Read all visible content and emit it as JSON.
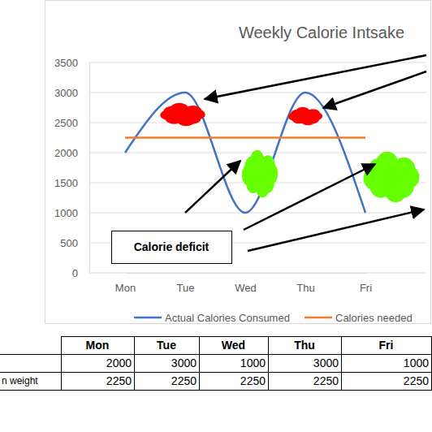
{
  "chart_data": {
    "type": "line",
    "title": "Weekly Calorie Intsake",
    "categories": [
      "Mon",
      "Tue",
      "Wed",
      "Thu",
      "Fri"
    ],
    "series": [
      {
        "name": "Actual Calories Consumed",
        "color": "#4472c4",
        "values": [
          2000,
          3000,
          1000,
          3000,
          1000
        ]
      },
      {
        "name": "Calories needed",
        "color": "#ed7d31",
        "values": [
          2250,
          2250,
          2250,
          2250,
          2250
        ]
      }
    ],
    "ylim": [
      0,
      3500
    ],
    "yticks": [
      0,
      500,
      1000,
      1500,
      2000,
      2500,
      3000,
      3500
    ],
    "grid": true,
    "legend": "bottom",
    "annotations": [
      "Calorie deficit"
    ]
  },
  "table": {
    "columns": [
      "Mon",
      "Tue",
      "Wed",
      "Thu",
      "Fri"
    ],
    "rows": [
      {
        "values": [
          2000,
          3000,
          1000,
          3000,
          1000
        ]
      },
      {
        "label": "n weight",
        "values": [
          2250,
          2250,
          2250,
          2250,
          2250
        ]
      }
    ]
  }
}
